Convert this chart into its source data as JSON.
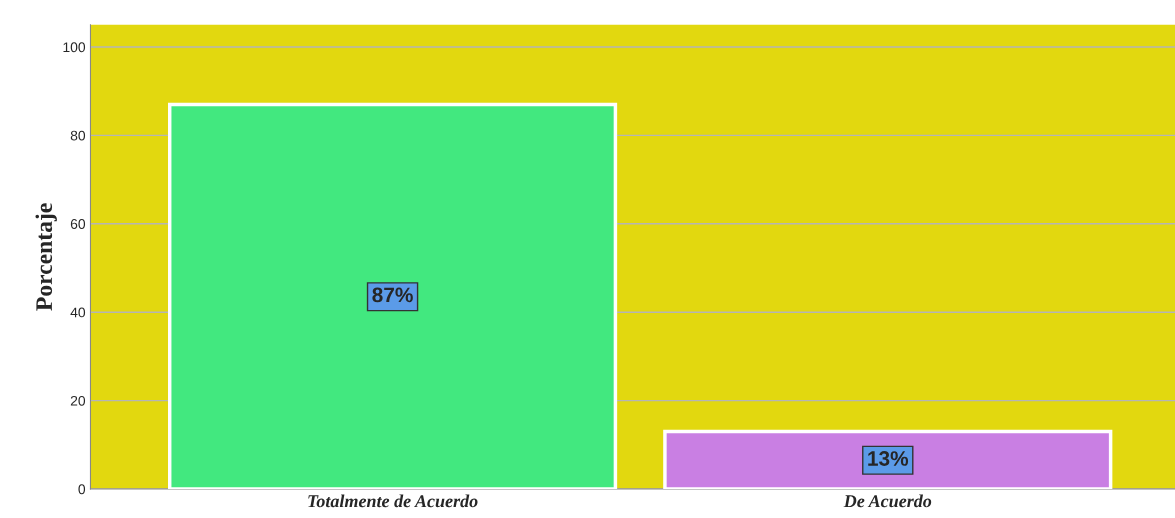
{
  "chart_data": {
    "type": "bar",
    "ylabel": "Porcentaje",
    "categories": [
      "Totalmente de Acuerdo",
      "De Acuerdo"
    ],
    "values": [
      87,
      13
    ],
    "colors": [
      "#42e87f",
      "#c97fe3"
    ],
    "value_labels": [
      "87%",
      "13%"
    ],
    "ylim": [
      0,
      105
    ],
    "yticks": [
      0,
      20,
      40,
      60,
      80,
      100
    ],
    "grid": "y"
  }
}
